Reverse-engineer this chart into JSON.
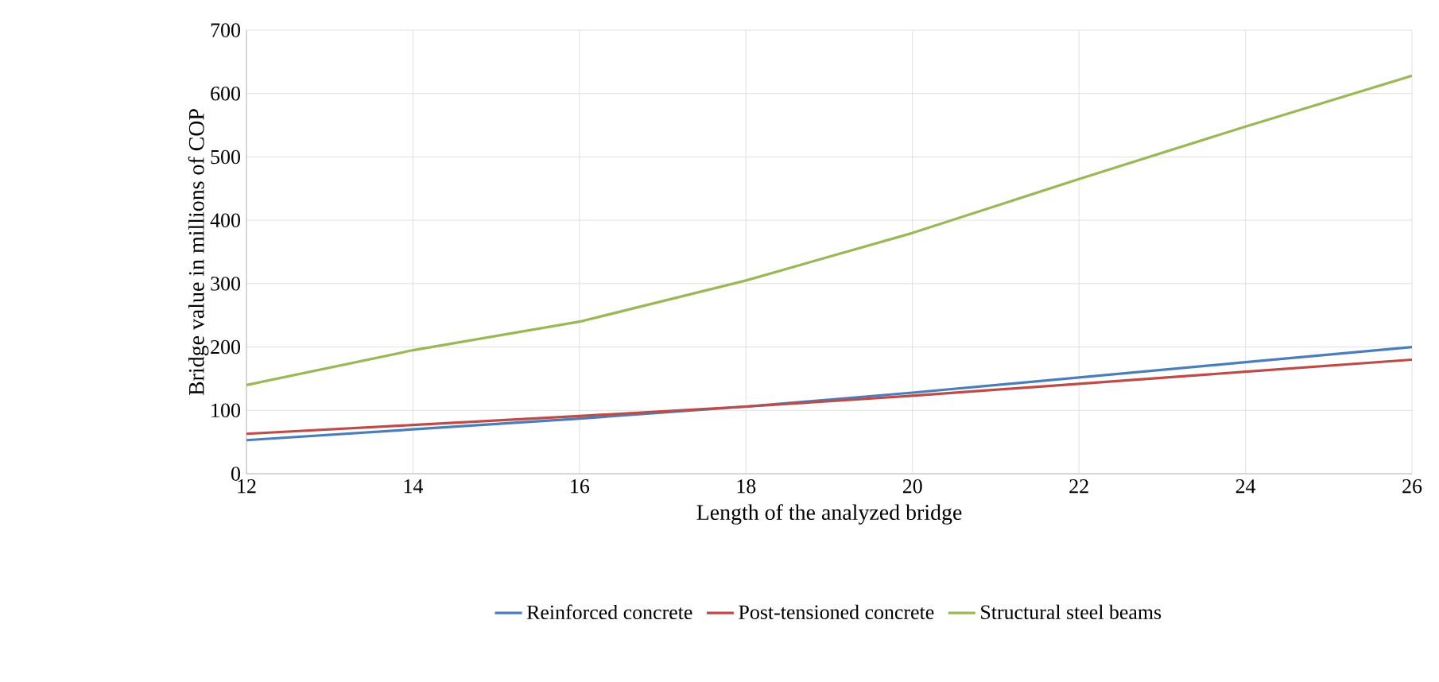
{
  "chart_data": {
    "type": "line",
    "xlabel": "Length of the analyzed bridge",
    "ylabel": "Bridge value in millions  of COP",
    "x": [
      12,
      14,
      16,
      18,
      20,
      22,
      24,
      26
    ],
    "series": [
      {
        "name": "Reinforced concrete",
        "color": "#4a7ebb",
        "values": [
          53,
          70,
          87,
          106,
          128,
          152,
          176,
          200
        ]
      },
      {
        "name": "Post-tensioned concrete",
        "color": "#be4b48",
        "values": [
          63,
          77,
          91,
          106,
          123,
          142,
          161,
          180
        ]
      },
      {
        "name": "Structural steel beams",
        "color": "#98b954",
        "values": [
          140,
          195,
          240,
          305,
          380,
          465,
          548,
          628
        ]
      }
    ],
    "xlim": [
      12,
      26
    ],
    "xticks": [
      12,
      14,
      16,
      18,
      20,
      22,
      24,
      26
    ],
    "ylim": [
      0,
      700
    ],
    "yticks": [
      0,
      100,
      200,
      300,
      400,
      500,
      600,
      700
    ],
    "grid": true,
    "legend": "bottom",
    "marker": "none",
    "line_style": "solid"
  }
}
